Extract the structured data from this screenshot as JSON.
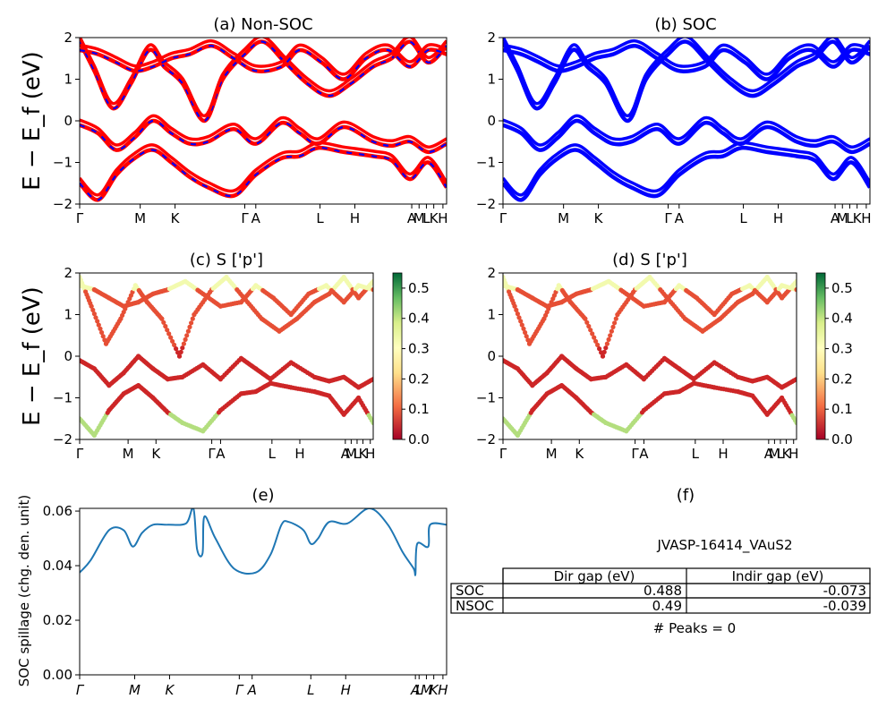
{
  "chart_data": [
    {
      "id": "a",
      "type": "line",
      "title": "(a) Non-SOC",
      "ylabel": "E − E_f (eV)",
      "ylim": [
        -2,
        2
      ],
      "yticks": [
        "2",
        "1",
        "0",
        "−1",
        "−2"
      ],
      "xticks": [
        "Γ",
        "M",
        "K",
        "Γ",
        "A",
        "L",
        "H",
        "A",
        "M",
        "L",
        "K",
        "H"
      ],
      "series": [
        {
          "color": "#ff0000",
          "dashed_overlay_color": "#0000ff",
          "values": [
            [
              0,
              -0.1
            ],
            [
              0.05,
              -0.3
            ],
            [
              0.1,
              -0.7
            ],
            [
              0.15,
              -0.4
            ],
            [
              0.2,
              0.0
            ],
            [
              0.25,
              -0.3
            ],
            [
              0.3,
              -0.55
            ],
            [
              0.35,
              -0.5
            ],
            [
              0.42,
              -0.2
            ],
            [
              0.48,
              -0.55
            ],
            [
              0.55,
              -0.05
            ],
            [
              0.6,
              -0.3
            ],
            [
              0.65,
              -0.55
            ],
            [
              0.72,
              -0.15
            ],
            [
              0.8,
              -0.5
            ],
            [
              0.85,
              -0.6
            ],
            [
              0.9,
              -0.5
            ],
            [
              0.95,
              -0.75
            ],
            [
              1.0,
              -0.55
            ]
          ]
        },
        {
          "color": "#ff0000",
          "dashed_overlay_color": "#0000ff",
          "values": [
            [
              0,
              -1.5
            ],
            [
              0.05,
              -1.9
            ],
            [
              0.1,
              -1.3
            ],
            [
              0.15,
              -0.9
            ],
            [
              0.2,
              -0.7
            ],
            [
              0.25,
              -1.0
            ],
            [
              0.3,
              -1.35
            ],
            [
              0.35,
              -1.6
            ],
            [
              0.42,
              -1.8
            ],
            [
              0.48,
              -1.3
            ],
            [
              0.55,
              -0.9
            ],
            [
              0.6,
              -0.85
            ],
            [
              0.65,
              -0.65
            ],
            [
              0.72,
              -0.75
            ],
            [
              0.8,
              -0.85
            ],
            [
              0.85,
              -0.95
            ],
            [
              0.9,
              -1.4
            ],
            [
              0.95,
              -1.0
            ],
            [
              1.0,
              -1.6
            ]
          ]
        },
        {
          "color": "#ff0000",
          "dashed_overlay_color": "#0000ff",
          "values": [
            [
              0,
              1.9
            ],
            [
              0.04,
              1.2
            ],
            [
              0.09,
              0.3
            ],
            [
              0.14,
              0.9
            ],
            [
              0.19,
              1.7
            ],
            [
              0.23,
              1.3
            ],
            [
              0.28,
              0.9
            ],
            [
              0.34,
              0.0
            ],
            [
              0.39,
              1.0
            ],
            [
              0.45,
              1.6
            ],
            [
              0.5,
              1.9
            ],
            [
              0.56,
              1.4
            ],
            [
              0.62,
              0.9
            ],
            [
              0.68,
              0.6
            ],
            [
              0.74,
              0.9
            ],
            [
              0.8,
              1.3
            ],
            [
              0.85,
              1.5
            ],
            [
              0.9,
              1.9
            ],
            [
              0.95,
              1.4
            ],
            [
              1.0,
              1.8
            ]
          ]
        },
        {
          "color": "#ff0000",
          "dashed_overlay_color": "#0000ff",
          "values": [
            [
              0,
              1.7
            ],
            [
              0.05,
              1.6
            ],
            [
              0.1,
              1.4
            ],
            [
              0.15,
              1.2
            ],
            [
              0.2,
              1.3
            ],
            [
              0.25,
              1.5
            ],
            [
              0.3,
              1.6
            ],
            [
              0.36,
              1.8
            ],
            [
              0.42,
              1.5
            ],
            [
              0.48,
              1.2
            ],
            [
              0.55,
              1.3
            ],
            [
              0.6,
              1.7
            ],
            [
              0.66,
              1.4
            ],
            [
              0.72,
              1.0
            ],
            [
              0.78,
              1.5
            ],
            [
              0.84,
              1.7
            ],
            [
              0.9,
              1.3
            ],
            [
              0.95,
              1.7
            ],
            [
              1.0,
              1.6
            ]
          ]
        }
      ]
    },
    {
      "id": "b",
      "type": "line",
      "title": "(b) SOC",
      "ylim": [
        -2,
        2
      ],
      "yticks": [
        "2",
        "1",
        "0",
        "−1",
        "−2"
      ],
      "xticks": [
        "Γ",
        "M",
        "K",
        "Γ",
        "A",
        "L",
        "H",
        "A",
        "M",
        "L",
        "K",
        "H"
      ],
      "series": [
        {
          "color": "#0000ff",
          "values": [
            [
              0,
              -0.1
            ],
            [
              0.05,
              -0.3
            ],
            [
              0.1,
              -0.7
            ],
            [
              0.15,
              -0.4
            ],
            [
              0.2,
              0.0
            ],
            [
              0.25,
              -0.3
            ],
            [
              0.3,
              -0.55
            ],
            [
              0.35,
              -0.5
            ],
            [
              0.42,
              -0.2
            ],
            [
              0.48,
              -0.55
            ],
            [
              0.55,
              -0.05
            ],
            [
              0.6,
              -0.3
            ],
            [
              0.65,
              -0.55
            ],
            [
              0.72,
              -0.15
            ],
            [
              0.8,
              -0.5
            ],
            [
              0.85,
              -0.6
            ],
            [
              0.9,
              -0.5
            ],
            [
              0.95,
              -0.75
            ],
            [
              1.0,
              -0.55
            ]
          ]
        },
        {
          "color": "#0000ff",
          "values": [
            [
              0,
              -1.5
            ],
            [
              0.05,
              -1.9
            ],
            [
              0.1,
              -1.3
            ],
            [
              0.15,
              -0.9
            ],
            [
              0.2,
              -0.7
            ],
            [
              0.25,
              -1.0
            ],
            [
              0.3,
              -1.35
            ],
            [
              0.35,
              -1.6
            ],
            [
              0.42,
              -1.8
            ],
            [
              0.48,
              -1.3
            ],
            [
              0.55,
              -0.9
            ],
            [
              0.6,
              -0.85
            ],
            [
              0.65,
              -0.65
            ],
            [
              0.72,
              -0.75
            ],
            [
              0.8,
              -0.85
            ],
            [
              0.85,
              -0.95
            ],
            [
              0.9,
              -1.4
            ],
            [
              0.95,
              -1.0
            ],
            [
              1.0,
              -1.6
            ]
          ]
        },
        {
          "color": "#0000ff",
          "values": [
            [
              0,
              1.9
            ],
            [
              0.04,
              1.2
            ],
            [
              0.09,
              0.3
            ],
            [
              0.14,
              0.9
            ],
            [
              0.19,
              1.7
            ],
            [
              0.23,
              1.3
            ],
            [
              0.28,
              0.9
            ],
            [
              0.34,
              0.0
            ],
            [
              0.39,
              1.0
            ],
            [
              0.45,
              1.6
            ],
            [
              0.5,
              1.9
            ],
            [
              0.56,
              1.4
            ],
            [
              0.62,
              0.9
            ],
            [
              0.68,
              0.6
            ],
            [
              0.74,
              0.9
            ],
            [
              0.8,
              1.3
            ],
            [
              0.85,
              1.5
            ],
            [
              0.9,
              1.9
            ],
            [
              0.95,
              1.4
            ],
            [
              1.0,
              1.8
            ]
          ]
        },
        {
          "color": "#0000ff",
          "values": [
            [
              0,
              1.7
            ],
            [
              0.05,
              1.6
            ],
            [
              0.1,
              1.4
            ],
            [
              0.15,
              1.2
            ],
            [
              0.2,
              1.3
            ],
            [
              0.25,
              1.5
            ],
            [
              0.3,
              1.6
            ],
            [
              0.36,
              1.8
            ],
            [
              0.42,
              1.5
            ],
            [
              0.48,
              1.2
            ],
            [
              0.55,
              1.3
            ],
            [
              0.6,
              1.7
            ],
            [
              0.66,
              1.4
            ],
            [
              0.72,
              1.0
            ],
            [
              0.78,
              1.5
            ],
            [
              0.84,
              1.7
            ],
            [
              0.9,
              1.3
            ],
            [
              0.95,
              1.7
            ],
            [
              1.0,
              1.6
            ]
          ]
        }
      ]
    },
    {
      "id": "c",
      "type": "scatter",
      "title": "(c)  S ['p']",
      "ylabel": "E − E_f (eV)",
      "ylim": [
        -2,
        2
      ],
      "yticks": [
        "2",
        "1",
        "0",
        "−1",
        "−2"
      ],
      "xticks": [
        "Γ",
        "M",
        "K",
        "Γ",
        "A",
        "L",
        "H",
        "A",
        "M",
        "L",
        "K",
        "H"
      ],
      "colorbar": {
        "min": 0.0,
        "max": 0.55,
        "ticks": [
          "0.0",
          "0.1",
          "0.2",
          "0.3",
          "0.4",
          "0.5"
        ],
        "colormap": "RdYlGn"
      }
    },
    {
      "id": "d",
      "type": "scatter",
      "title": "(d) S ['p']",
      "ylim": [
        -2,
        2
      ],
      "yticks": [
        "2",
        "1",
        "0",
        "−1",
        "−2"
      ],
      "xticks": [
        "Γ",
        "M",
        "K",
        "Γ",
        "A",
        "L",
        "H",
        "A",
        "M",
        "L",
        "K",
        "H"
      ],
      "colorbar": {
        "min": 0.0,
        "max": 0.55,
        "ticks": [
          "0.0",
          "0.1",
          "0.2",
          "0.3",
          "0.4",
          "0.5"
        ],
        "colormap": "RdYlGn"
      }
    },
    {
      "id": "e",
      "type": "line",
      "title": "(e)",
      "ylabel": "SOC spillage (chg. den. unit)",
      "ylim": [
        0.0,
        0.061
      ],
      "yticks": [
        "0.06",
        "0.04",
        "0.02",
        "0.00"
      ],
      "xticks": [
        "Γ",
        "M",
        "K",
        "Γ",
        "A",
        "L",
        "H",
        "A",
        "L",
        "M",
        "K",
        "H"
      ],
      "series": [
        {
          "color": "#1f77b4",
          "values": [
            [
              0,
              0.0375
            ],
            [
              0.03,
              0.042
            ],
            [
              0.08,
              0.053
            ],
            [
              0.12,
              0.053
            ],
            [
              0.145,
              0.047
            ],
            [
              0.17,
              0.052
            ],
            [
              0.2,
              0.055
            ],
            [
              0.24,
              0.055
            ],
            [
              0.29,
              0.0555
            ],
            [
              0.31,
              0.061
            ],
            [
              0.32,
              0.046
            ],
            [
              0.335,
              0.0445
            ],
            [
              0.34,
              0.058
            ],
            [
              0.37,
              0.05
            ],
            [
              0.42,
              0.039
            ],
            [
              0.48,
              0.0375
            ],
            [
              0.52,
              0.044
            ],
            [
              0.55,
              0.055
            ],
            [
              0.57,
              0.056
            ],
            [
              0.61,
              0.053
            ],
            [
              0.63,
              0.048
            ],
            [
              0.65,
              0.05
            ],
            [
              0.68,
              0.056
            ],
            [
              0.73,
              0.0555
            ],
            [
              0.79,
              0.061
            ],
            [
              0.84,
              0.055
            ],
            [
              0.88,
              0.045
            ],
            [
              0.91,
              0.039
            ],
            [
              0.915,
              0.037
            ],
            [
              0.92,
              0.048
            ],
            [
              0.95,
              0.047
            ],
            [
              0.955,
              0.055
            ],
            [
              1.0,
              0.055
            ]
          ]
        }
      ]
    }
  ],
  "panel_f": {
    "title": "(f)",
    "material_id": "JVASP-16414_VAuS2",
    "table": {
      "columns": [
        "Dir gap (eV)",
        "Indir gap (eV)"
      ],
      "rows": [
        {
          "label": "SOC",
          "dir": "0.488",
          "indir": "-0.073"
        },
        {
          "label": "NSOC",
          "dir": "0.49",
          "indir": "-0.039"
        }
      ]
    },
    "peaks_label": "# Peaks = 0"
  }
}
